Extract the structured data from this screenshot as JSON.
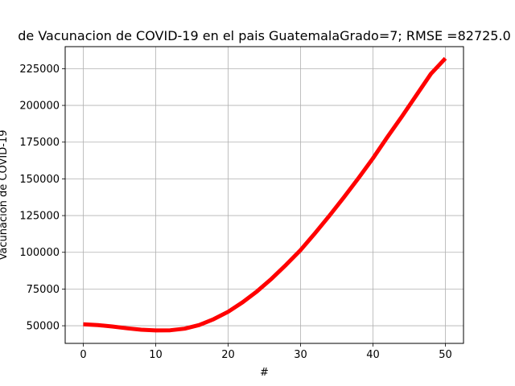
{
  "chart_data": {
    "type": "line",
    "title": "de Vacunacion de COVID-19 en el pais GuatemalaGrado=7; RMSE =82725.0",
    "xlabel": "#",
    "ylabel": "Vacunacion de COVID-19",
    "xlim": [
      -2.5,
      52.5
    ],
    "ylim": [
      38000,
      240000
    ],
    "grid": true,
    "x_ticks": [
      0,
      10,
      20,
      30,
      40,
      50
    ],
    "y_ticks": [
      50000,
      75000,
      100000,
      125000,
      150000,
      175000,
      200000,
      225000
    ],
    "y_tick_labels": [
      "50000",
      "75000",
      "100000",
      "125000",
      "150000",
      "175000",
      "200000",
      "225000"
    ],
    "series": [
      {
        "color": "#ff0000",
        "x": [
          0,
          2,
          4,
          6,
          8,
          10,
          12,
          14,
          16,
          18,
          20,
          22,
          24,
          26,
          28,
          30,
          32,
          34,
          36,
          38,
          40,
          42,
          44,
          46,
          48,
          50
        ],
        "values": [
          51000,
          50500,
          49500,
          48300,
          47300,
          46800,
          46900,
          48000,
          50500,
          54500,
          59500,
          66000,
          73500,
          82000,
          91500,
          101500,
          113000,
          125000,
          137500,
          150500,
          164000,
          178500,
          192500,
          207000,
          221500,
          232000
        ]
      }
    ]
  }
}
